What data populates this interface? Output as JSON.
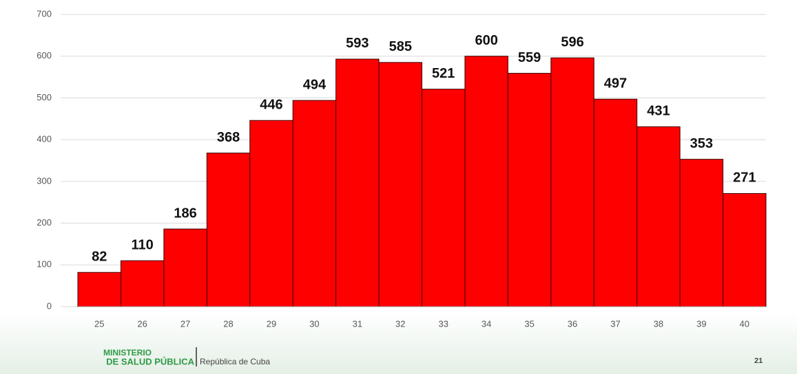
{
  "chart_data": {
    "type": "bar",
    "categories": [
      "25",
      "26",
      "27",
      "28",
      "29",
      "30",
      "31",
      "32",
      "33",
      "34",
      "35",
      "36",
      "37",
      "38",
      "39",
      "40"
    ],
    "values": [
      82,
      110,
      186,
      368,
      446,
      494,
      593,
      585,
      521,
      600,
      559,
      596,
      497,
      431,
      353,
      271
    ],
    "color": "#ff0000",
    "ylim": [
      0,
      700
    ],
    "yticks": [
      0,
      100,
      200,
      300,
      400,
      500,
      600,
      700
    ],
    "grid": true
  },
  "footer": {
    "ministry_line1": "MINISTERIO",
    "ministry_line2": "DE SALUD PÚBLICA",
    "country": "República de Cuba",
    "page_number": "21"
  }
}
